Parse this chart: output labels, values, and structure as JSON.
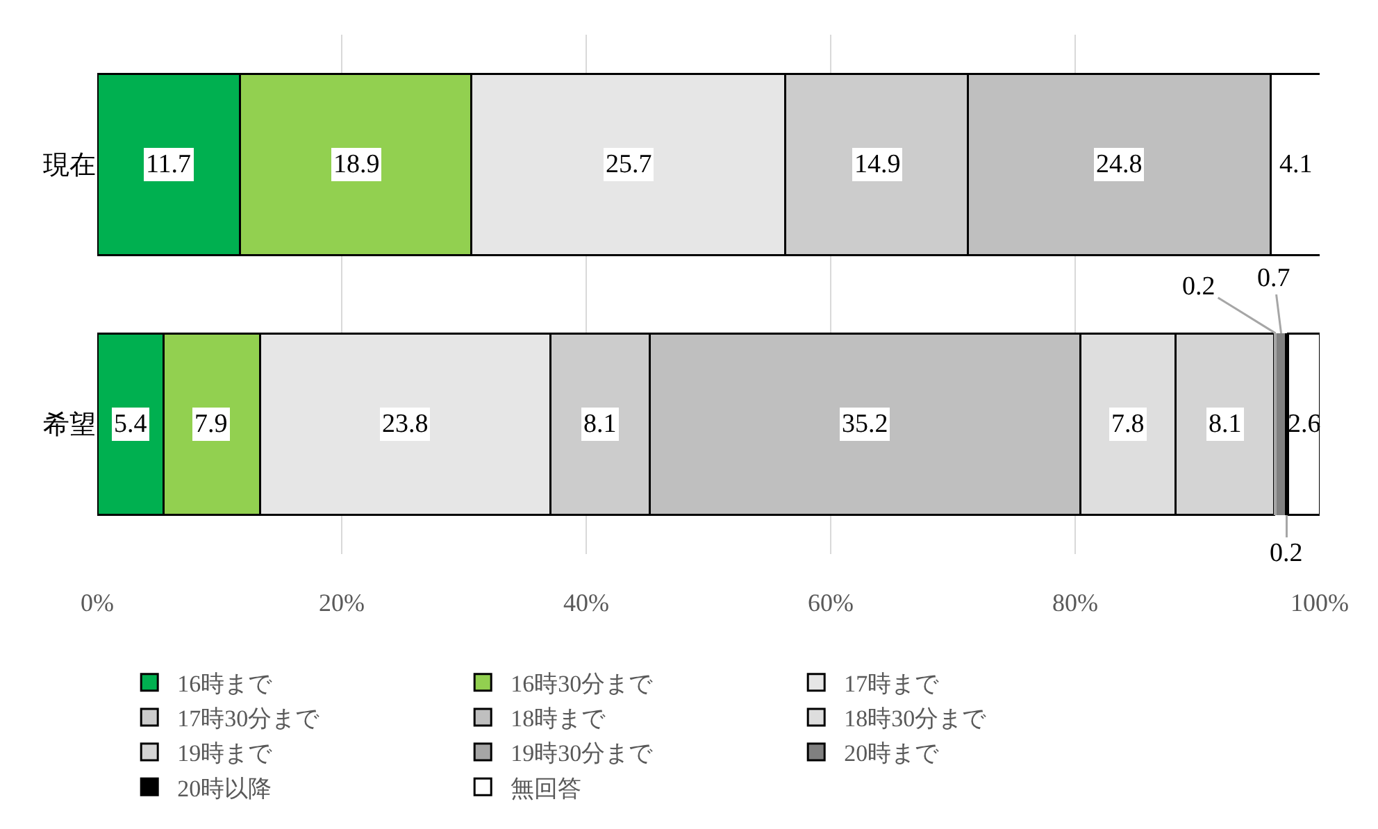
{
  "chart_data": {
    "type": "bar",
    "orientation": "horizontal",
    "stacked": true,
    "categories": [
      "現在",
      "希望"
    ],
    "series": [
      {
        "name": "16時まで",
        "color": "#00b050",
        "values": [
          11.7,
          5.4
        ]
      },
      {
        "name": "16時30分まで",
        "color": "#92d050",
        "values": [
          18.9,
          7.9
        ]
      },
      {
        "name": "17時まで",
        "color": "#e6e6e6",
        "values": [
          25.7,
          23.8
        ]
      },
      {
        "name": "17時30分まで",
        "color": "#cccccc",
        "values": [
          14.9,
          8.1
        ]
      },
      {
        "name": "18時まで",
        "color": "#bfbfbf",
        "values": [
          24.8,
          35.2
        ]
      },
      {
        "name": "18時30分まで",
        "color": "#dedede",
        "values": [
          null,
          7.8
        ]
      },
      {
        "name": "19時まで",
        "color": "#d4d4d4",
        "values": [
          null,
          8.1
        ]
      },
      {
        "name": "19時30分まで",
        "color": "#a6a6a6",
        "values": [
          null,
          0.2
        ]
      },
      {
        "name": "20時まで",
        "color": "#808080",
        "values": [
          null,
          0.7
        ]
      },
      {
        "name": "20時以降",
        "color": "#000000",
        "values": [
          null,
          0.2
        ]
      },
      {
        "name": "無回答",
        "color": "#ffffff",
        "values": [
          4.1,
          2.6
        ]
      }
    ],
    "xlim": [
      0,
      100
    ],
    "xticks": [
      {
        "value": 0,
        "label": "0%"
      },
      {
        "value": 20,
        "label": "20%"
      },
      {
        "value": 40,
        "label": "40%"
      },
      {
        "value": 60,
        "label": "60%"
      },
      {
        "value": 80,
        "label": "80%"
      },
      {
        "value": 100,
        "label": "100%"
      }
    ],
    "grid": "x",
    "legend": "bottom",
    "data_labels": true
  }
}
